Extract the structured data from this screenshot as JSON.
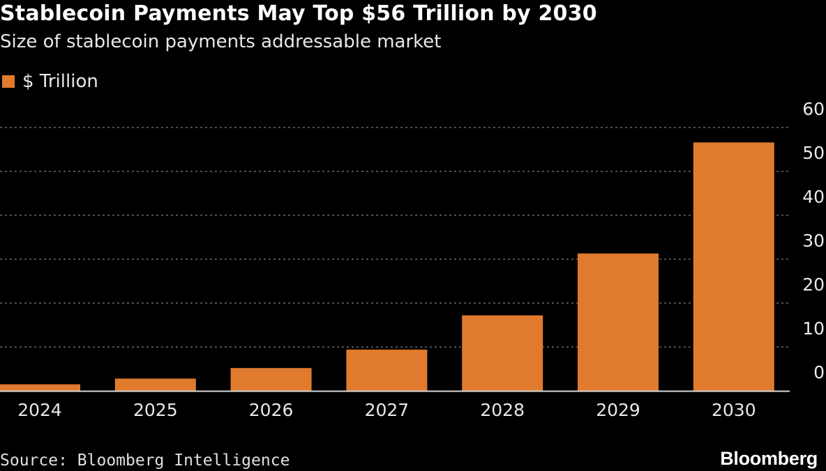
{
  "colors": {
    "background": "#000000",
    "bar": "#e07b2e",
    "text": "#ffffff",
    "grid": "#6a6a6a"
  },
  "chart_data": {
    "type": "bar",
    "title": "Stablecoin Payments May Top $56 Trillion by 2030",
    "subtitle": "Size of stablecoin payments addressable market",
    "categories": [
      "2024",
      "2025",
      "2026",
      "2027",
      "2028",
      "2029",
      "2030"
    ],
    "series": [
      {
        "name": "$ Trillion",
        "values": [
          1.5,
          2.8,
          5.2,
          9.4,
          17.2,
          31.3,
          56.6
        ]
      }
    ],
    "ylim": [
      0,
      60
    ],
    "yticks": [
      "0",
      "10",
      "20",
      "30",
      "40",
      "50",
      "60"
    ],
    "y_axis_position": "right",
    "grid": true,
    "legend_position": "top-left",
    "source": "Source: Bloomberg Intelligence",
    "brand": "Bloomberg"
  }
}
